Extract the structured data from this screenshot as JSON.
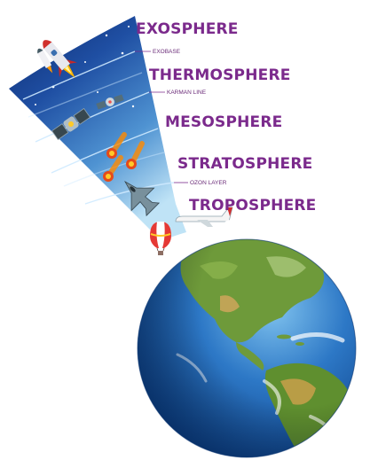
{
  "layers": [
    {
      "name": "EXOSPHERE"
    },
    {
      "name": "THERMOSPHERE"
    },
    {
      "name": "MESOSPHERE"
    },
    {
      "name": "STRATOSPHERE"
    },
    {
      "name": "TROPOSPHERE"
    }
  ],
  "boundaries": [
    {
      "label": "EXOBASE"
    },
    {
      "label": "KARMAN LINE"
    },
    {
      "label": "OZON LAYER"
    }
  ],
  "colors": {
    "label": "#7b2a8c",
    "sky_top": "#0d2a6e",
    "sky_bottom": "#bfe3f6",
    "ocean": "#1f5fb0",
    "land": "#6e9a3a"
  },
  "icons": [
    "rocket-icon",
    "satellite-icon",
    "meteor-icon",
    "fighter-jet-icon",
    "airplane-icon",
    "hot-air-balloon-icon",
    "earth-globe-icon",
    "cloud-icon",
    "star-icon"
  ]
}
